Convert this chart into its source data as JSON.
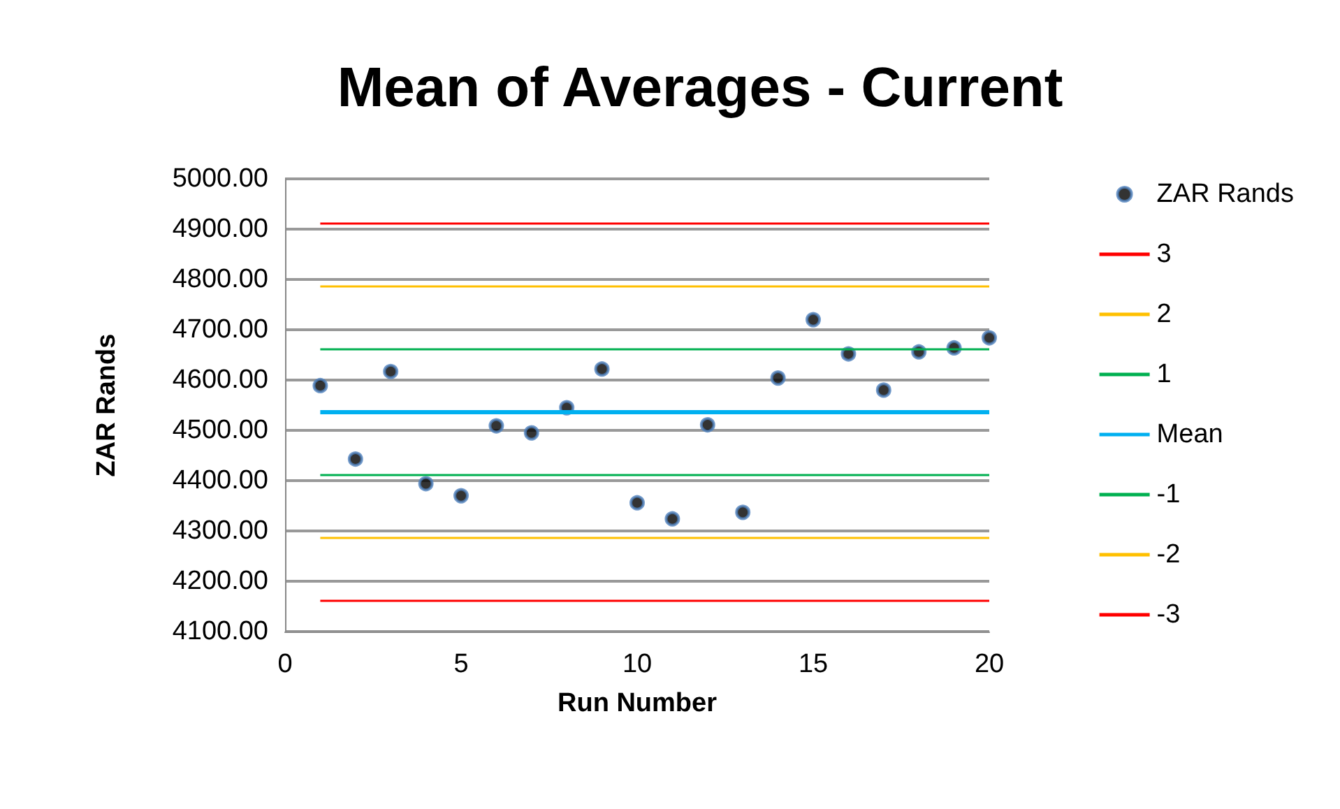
{
  "chart_data": {
    "type": "scatter",
    "title": "Mean of Averages - Current",
    "xlabel": "Run Number",
    "ylabel": "ZAR Rands",
    "x": [
      1,
      2,
      3,
      4,
      5,
      6,
      7,
      8,
      9,
      10,
      11,
      12,
      13,
      14,
      15,
      16,
      17,
      18,
      19,
      20
    ],
    "series": [
      {
        "name": "ZAR Rands",
        "color": "#000000",
        "values": [
          4589,
          4443,
          4617,
          4394,
          4370,
          4509,
          4495,
          4545,
          4622,
          4356,
          4324,
          4511,
          4337,
          4604,
          4720,
          4652,
          4580,
          4656,
          4664,
          4684
        ]
      },
      {
        "name": "3",
        "type": "line",
        "marker": "none",
        "color": "#ff0000",
        "values": [
          4911,
          4911,
          4911,
          4911,
          4911,
          4911,
          4911,
          4911,
          4911,
          4911,
          4911,
          4911,
          4911,
          4911,
          4911,
          4911,
          4911,
          4911,
          4911,
          4911
        ]
      },
      {
        "name": "2",
        "type": "line",
        "marker": "none",
        "color": "#ffc000",
        "values": [
          4786,
          4786,
          4786,
          4786,
          4786,
          4786,
          4786,
          4786,
          4786,
          4786,
          4786,
          4786,
          4786,
          4786,
          4786,
          4786,
          4786,
          4786,
          4786,
          4786
        ]
      },
      {
        "name": "1",
        "type": "line",
        "marker": "none",
        "color": "#00b050",
        "values": [
          4661,
          4661,
          4661,
          4661,
          4661,
          4661,
          4661,
          4661,
          4661,
          4661,
          4661,
          4661,
          4661,
          4661,
          4661,
          4661,
          4661,
          4661,
          4661,
          4661
        ]
      },
      {
        "name": "Mean",
        "type": "line",
        "marker": "none",
        "color": "#00b0f0",
        "values": [
          4536,
          4536,
          4536,
          4536,
          4536,
          4536,
          4536,
          4536,
          4536,
          4536,
          4536,
          4536,
          4536,
          4536,
          4536,
          4536,
          4536,
          4536,
          4536,
          4536
        ]
      },
      {
        "name": "-1",
        "type": "line",
        "marker": "none",
        "color": "#00b050",
        "values": [
          4411,
          4411,
          4411,
          4411,
          4411,
          4411,
          4411,
          4411,
          4411,
          4411,
          4411,
          4411,
          4411,
          4411,
          4411,
          4411,
          4411,
          4411,
          4411,
          4411
        ]
      },
      {
        "name": "-2",
        "type": "line",
        "marker": "none",
        "color": "#ffc000",
        "values": [
          4286,
          4286,
          4286,
          4286,
          4286,
          4286,
          4286,
          4286,
          4286,
          4286,
          4286,
          4286,
          4286,
          4286,
          4286,
          4286,
          4286,
          4286,
          4286,
          4286
        ]
      },
      {
        "name": "-3",
        "type": "line",
        "marker": "none",
        "color": "#ff0000",
        "values": [
          4161,
          4161,
          4161,
          4161,
          4161,
          4161,
          4161,
          4161,
          4161,
          4161,
          4161,
          4161,
          4161,
          4161,
          4161,
          4161,
          4161,
          4161,
          4161,
          4161
        ]
      }
    ],
    "xlim": [
      0,
      20
    ],
    "xticks": [
      0,
      5,
      10,
      15,
      20
    ],
    "ylim": [
      4100,
      5000
    ],
    "yticks": [
      {
        "value": 4100,
        "label": "4100.00"
      },
      {
        "value": 4200,
        "label": "4200.00"
      },
      {
        "value": 4300,
        "label": "4300.00"
      },
      {
        "value": 4400,
        "label": "4400.00"
      },
      {
        "value": 4500,
        "label": "4500.00"
      },
      {
        "value": 4600,
        "label": "4600.00"
      },
      {
        "value": 4700,
        "label": "4700.00"
      },
      {
        "value": 4800,
        "label": "4800.00"
      },
      {
        "value": 4900,
        "label": "4900.00"
      },
      {
        "value": 5000,
        "label": "5000.00"
      }
    ],
    "grid": "y",
    "legend": "right",
    "marker": "circle",
    "line_style": "solid"
  }
}
